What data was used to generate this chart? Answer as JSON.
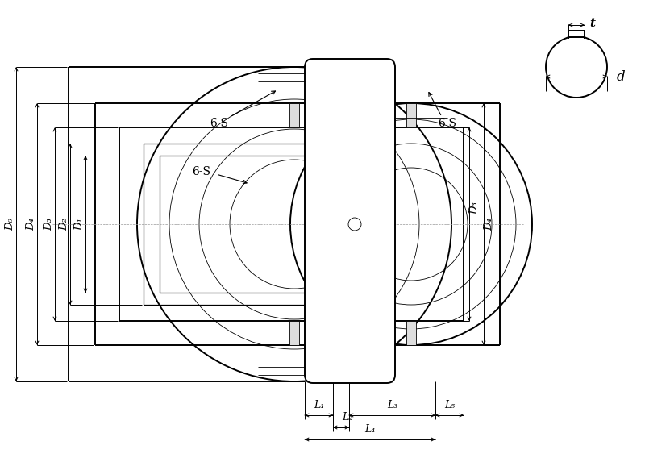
{
  "bg_color": "#ffffff",
  "line_color": "#000000",
  "fig_width": 8.0,
  "fig_height": 5.73,
  "dpi": 100,
  "dim_labels": {
    "D0": "D₀",
    "D1": "D₁",
    "D2": "D₂",
    "D3": "D₃",
    "D4": "D₄",
    "L1": "L₁",
    "L2": "L₂",
    "L3": "L₃",
    "L4": "L₄",
    "L5": "L₅",
    "d": "d",
    "t": "t"
  },
  "annotation_6S": "6-S",
  "lw_thick": 1.4,
  "lw_mid": 0.9,
  "lw_thin": 0.6,
  "lw_dim": 0.7
}
